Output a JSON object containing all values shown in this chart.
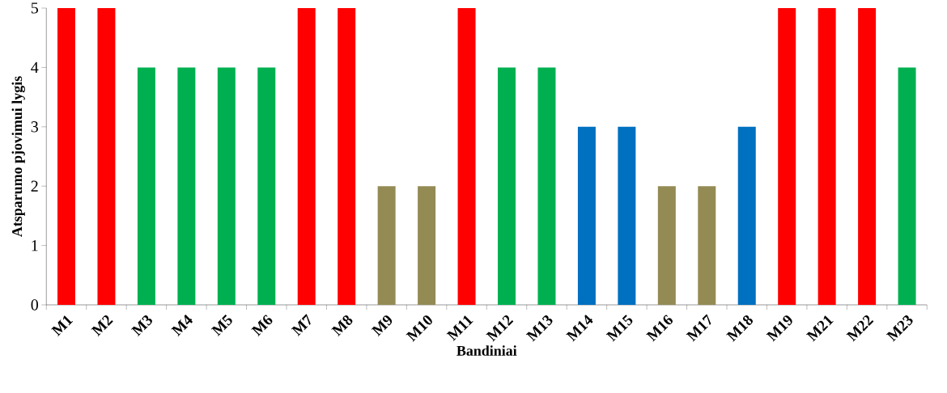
{
  "chart_data": {
    "type": "bar",
    "xlabel": "Bandiniai",
    "ylabel": "Atsparumo pjovimui lygis",
    "categories": [
      "M1",
      "M2",
      "M3",
      "M4",
      "M5",
      "M6",
      "M7",
      "M8",
      "M9",
      "M10",
      "M11",
      "M12",
      "M13",
      "M14",
      "M15",
      "M16",
      "M17",
      "M18",
      "M19",
      "M21",
      "M22",
      "M23"
    ],
    "values": [
      5,
      5,
      4,
      4,
      4,
      4,
      5,
      5,
      2,
      2,
      5,
      4,
      4,
      3,
      3,
      2,
      2,
      3,
      5,
      5,
      5,
      4
    ],
    "colors": [
      "#ff0000",
      "#ff0000",
      "#00b050",
      "#00b050",
      "#00b050",
      "#00b050",
      "#ff0000",
      "#ff0000",
      "#948a54",
      "#948a54",
      "#ff0000",
      "#00b050",
      "#00b050",
      "#0070c0",
      "#0070c0",
      "#948a54",
      "#948a54",
      "#0070c0",
      "#ff0000",
      "#ff0000",
      "#ff0000",
      "#00b050"
    ],
    "ylim": [
      0,
      5
    ],
    "yticks": [
      0,
      1,
      2,
      3,
      4,
      5
    ]
  }
}
